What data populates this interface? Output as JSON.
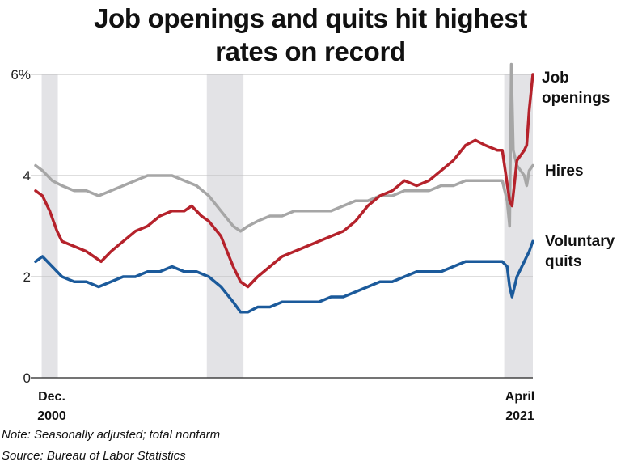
{
  "title_lines": [
    "Job openings and quits hit highest",
    "rates on record"
  ],
  "note": "Note: Seasonally adjusted; total nonfarm",
  "source": "Source: Bureau of Labor Statistics",
  "colors": {
    "job_openings": "#b5222b",
    "hires": "#a6a6a6",
    "voluntary_quits": "#1b5a9b",
    "recession": "#e3e3e6",
    "grid": "#bdbdbd"
  },
  "chart_data": {
    "type": "line",
    "x_start_label": [
      "Dec.",
      "2000"
    ],
    "x_end_label": [
      "April",
      "2021"
    ],
    "xlim": [
      2000.92,
      2021.25
    ],
    "ylim": [
      0,
      6
    ],
    "y_ticks": [
      {
        "value": 0,
        "label": "0"
      },
      {
        "value": 2,
        "label": "2"
      },
      {
        "value": 4,
        "label": "4"
      },
      {
        "value": 6,
        "label": "6%"
      }
    ],
    "grid": true,
    "recessions": [
      {
        "start": 2001.17,
        "end": 2001.83
      },
      {
        "start": 2007.92,
        "end": 2009.42
      },
      {
        "start": 2020.08,
        "end": 2021.25
      }
    ],
    "series": [
      {
        "name": "Job openings",
        "label_lines": [
          "Job",
          "openings"
        ],
        "color_key": "job_openings",
        "points": [
          [
            2000.92,
            3.7
          ],
          [
            2001.2,
            3.6
          ],
          [
            2001.5,
            3.3
          ],
          [
            2001.8,
            2.9
          ],
          [
            2002.0,
            2.7
          ],
          [
            2002.5,
            2.6
          ],
          [
            2003.0,
            2.5
          ],
          [
            2003.3,
            2.4
          ],
          [
            2003.6,
            2.3
          ],
          [
            2004.0,
            2.5
          ],
          [
            2004.5,
            2.7
          ],
          [
            2005.0,
            2.9
          ],
          [
            2005.5,
            3.0
          ],
          [
            2006.0,
            3.2
          ],
          [
            2006.5,
            3.3
          ],
          [
            2007.0,
            3.3
          ],
          [
            2007.3,
            3.4
          ],
          [
            2007.7,
            3.2
          ],
          [
            2008.0,
            3.1
          ],
          [
            2008.5,
            2.8
          ],
          [
            2009.0,
            2.2
          ],
          [
            2009.3,
            1.9
          ],
          [
            2009.6,
            1.8
          ],
          [
            2010.0,
            2.0
          ],
          [
            2010.5,
            2.2
          ],
          [
            2011.0,
            2.4
          ],
          [
            2011.5,
            2.5
          ],
          [
            2012.0,
            2.6
          ],
          [
            2012.5,
            2.7
          ],
          [
            2013.0,
            2.8
          ],
          [
            2013.5,
            2.9
          ],
          [
            2014.0,
            3.1
          ],
          [
            2014.5,
            3.4
          ],
          [
            2015.0,
            3.6
          ],
          [
            2015.5,
            3.7
          ],
          [
            2016.0,
            3.9
          ],
          [
            2016.5,
            3.8
          ],
          [
            2017.0,
            3.9
          ],
          [
            2017.5,
            4.1
          ],
          [
            2018.0,
            4.3
          ],
          [
            2018.5,
            4.6
          ],
          [
            2018.9,
            4.7
          ],
          [
            2019.3,
            4.6
          ],
          [
            2019.8,
            4.5
          ],
          [
            2020.0,
            4.5
          ],
          [
            2020.3,
            3.5
          ],
          [
            2020.4,
            3.4
          ],
          [
            2020.6,
            4.3
          ],
          [
            2020.9,
            4.5
          ],
          [
            2021.0,
            4.6
          ],
          [
            2021.1,
            5.3
          ],
          [
            2021.25,
            6.0
          ]
        ]
      },
      {
        "name": "Hires",
        "label_lines": [
          "Hires"
        ],
        "color_key": "hires",
        "points": [
          [
            2000.92,
            4.2
          ],
          [
            2001.2,
            4.1
          ],
          [
            2001.6,
            3.9
          ],
          [
            2002.0,
            3.8
          ],
          [
            2002.5,
            3.7
          ],
          [
            2003.0,
            3.7
          ],
          [
            2003.5,
            3.6
          ],
          [
            2004.0,
            3.7
          ],
          [
            2004.5,
            3.8
          ],
          [
            2005.0,
            3.9
          ],
          [
            2005.5,
            4.0
          ],
          [
            2006.0,
            4.0
          ],
          [
            2006.5,
            4.0
          ],
          [
            2007.0,
            3.9
          ],
          [
            2007.5,
            3.8
          ],
          [
            2008.0,
            3.6
          ],
          [
            2008.5,
            3.3
          ],
          [
            2009.0,
            3.0
          ],
          [
            2009.3,
            2.9
          ],
          [
            2009.6,
            3.0
          ],
          [
            2010.0,
            3.1
          ],
          [
            2010.5,
            3.2
          ],
          [
            2011.0,
            3.2
          ],
          [
            2011.5,
            3.3
          ],
          [
            2012.0,
            3.3
          ],
          [
            2012.5,
            3.3
          ],
          [
            2013.0,
            3.3
          ],
          [
            2013.5,
            3.4
          ],
          [
            2014.0,
            3.5
          ],
          [
            2014.5,
            3.5
          ],
          [
            2015.0,
            3.6
          ],
          [
            2015.5,
            3.6
          ],
          [
            2016.0,
            3.7
          ],
          [
            2016.5,
            3.7
          ],
          [
            2017.0,
            3.7
          ],
          [
            2017.5,
            3.8
          ],
          [
            2018.0,
            3.8
          ],
          [
            2018.5,
            3.9
          ],
          [
            2019.0,
            3.9
          ],
          [
            2019.5,
            3.9
          ],
          [
            2020.0,
            3.9
          ],
          [
            2020.2,
            3.5
          ],
          [
            2020.3,
            3.0
          ],
          [
            2020.37,
            6.2
          ],
          [
            2020.45,
            4.5
          ],
          [
            2020.6,
            4.2
          ],
          [
            2020.9,
            4.0
          ],
          [
            2021.0,
            3.8
          ],
          [
            2021.1,
            4.1
          ],
          [
            2021.25,
            4.2
          ]
        ]
      },
      {
        "name": "Voluntary quits",
        "label_lines": [
          "Voluntary",
          "quits"
        ],
        "color_key": "voluntary_quits",
        "points": [
          [
            2000.92,
            2.3
          ],
          [
            2001.2,
            2.4
          ],
          [
            2001.6,
            2.2
          ],
          [
            2002.0,
            2.0
          ],
          [
            2002.5,
            1.9
          ],
          [
            2003.0,
            1.9
          ],
          [
            2003.5,
            1.8
          ],
          [
            2004.0,
            1.9
          ],
          [
            2004.5,
            2.0
          ],
          [
            2005.0,
            2.0
          ],
          [
            2005.5,
            2.1
          ],
          [
            2006.0,
            2.1
          ],
          [
            2006.5,
            2.2
          ],
          [
            2007.0,
            2.1
          ],
          [
            2007.5,
            2.1
          ],
          [
            2008.0,
            2.0
          ],
          [
            2008.5,
            1.8
          ],
          [
            2009.0,
            1.5
          ],
          [
            2009.3,
            1.3
          ],
          [
            2009.6,
            1.3
          ],
          [
            2010.0,
            1.4
          ],
          [
            2010.5,
            1.4
          ],
          [
            2011.0,
            1.5
          ],
          [
            2011.5,
            1.5
          ],
          [
            2012.0,
            1.5
          ],
          [
            2012.5,
            1.5
          ],
          [
            2013.0,
            1.6
          ],
          [
            2013.5,
            1.6
          ],
          [
            2014.0,
            1.7
          ],
          [
            2014.5,
            1.8
          ],
          [
            2015.0,
            1.9
          ],
          [
            2015.5,
            1.9
          ],
          [
            2016.0,
            2.0
          ],
          [
            2016.5,
            2.1
          ],
          [
            2017.0,
            2.1
          ],
          [
            2017.5,
            2.1
          ],
          [
            2018.0,
            2.2
          ],
          [
            2018.5,
            2.3
          ],
          [
            2019.0,
            2.3
          ],
          [
            2019.5,
            2.3
          ],
          [
            2020.0,
            2.3
          ],
          [
            2020.2,
            2.2
          ],
          [
            2020.3,
            1.8
          ],
          [
            2020.4,
            1.6
          ],
          [
            2020.6,
            2.0
          ],
          [
            2020.9,
            2.3
          ],
          [
            2021.0,
            2.4
          ],
          [
            2021.1,
            2.5
          ],
          [
            2021.25,
            2.7
          ]
        ]
      }
    ]
  }
}
